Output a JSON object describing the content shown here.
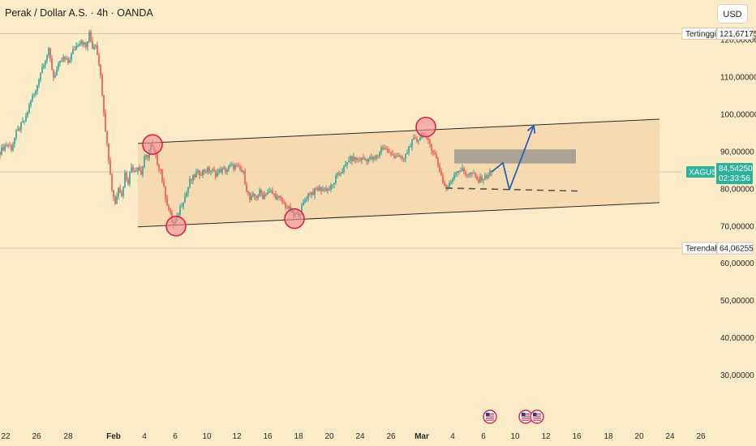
{
  "header": {
    "title": "Perak / Dollar A.S. · 4h · OANDA",
    "currency_button": "USD"
  },
  "price_labels": {
    "high_label": "Tertinggi",
    "high_value": "121,67175",
    "low_label": "Terendah",
    "low_value": "64,06255",
    "symbol": "XAGUSD",
    "last_price": "84,54250",
    "countdown": "02:33:56"
  },
  "colors": {
    "background": "#fbebc6",
    "up_candle": "#26a69a",
    "down_candle": "#ef5350",
    "channel_fill": "#f5d6a8",
    "circle_fill": "#f48a93",
    "circle_stroke": "#e0204c",
    "projection": "#2962b8",
    "resistance_zone": "#9e9a92",
    "price_tag": "#2bb39a"
  },
  "chart_data": {
    "type": "candlestick",
    "title": "Perak / Dollar A.S. · 4h · OANDA",
    "xlabel": "",
    "ylabel": "",
    "ylim": [
      22.5,
      130.7
    ],
    "y_ticks": [
      "120,00000",
      "110,00000",
      "100,00000",
      "90,00000",
      "80,00000",
      "70,00000",
      "60,00000",
      "50,00000",
      "40,00000",
      "30,00000"
    ],
    "x_ticks": [
      "22",
      "26",
      "28",
      "Feb",
      "4",
      "6",
      "10",
      "12",
      "16",
      "18",
      "20",
      "24",
      "26",
      "Mar",
      "4",
      "6",
      "10",
      "12",
      "16",
      "18",
      "20",
      "24",
      "26"
    ],
    "grid": false,
    "series": [
      {
        "type": "close-path",
        "points": [
          [
            0,
            90
          ],
          [
            8,
            92
          ],
          [
            14,
            91
          ],
          [
            20,
            95
          ],
          [
            26,
            97
          ],
          [
            32,
            99
          ],
          [
            38,
            104
          ],
          [
            44,
            106
          ],
          [
            48,
            110
          ],
          [
            54,
            114
          ],
          [
            60,
            117
          ],
          [
            66,
            110
          ],
          [
            72,
            113
          ],
          [
            78,
            115
          ],
          [
            84,
            114
          ],
          [
            90,
            117
          ],
          [
            96,
            119
          ],
          [
            100,
            120
          ],
          [
            106,
            118
          ],
          [
            110,
            121.5
          ],
          [
            114,
            118
          ],
          [
            118,
            119
          ],
          [
            122,
            114
          ],
          [
            126,
            106
          ],
          [
            130,
            96
          ],
          [
            134,
            88
          ],
          [
            138,
            80
          ],
          [
            142,
            76
          ],
          [
            146,
            81
          ],
          [
            150,
            78
          ],
          [
            154,
            84
          ],
          [
            158,
            82
          ],
          [
            162,
            86
          ],
          [
            166,
            85
          ],
          [
            170,
            86
          ],
          [
            174,
            84
          ],
          [
            178,
            88
          ],
          [
            182,
            89
          ],
          [
            186,
            92
          ],
          [
            190,
            90
          ],
          [
            194,
            87
          ],
          [
            198,
            85
          ],
          [
            202,
            80
          ],
          [
            206,
            76
          ],
          [
            210,
            73
          ],
          [
            214,
            70
          ],
          [
            218,
            72
          ],
          [
            222,
            75
          ],
          [
            226,
            77
          ],
          [
            230,
            79
          ],
          [
            234,
            82
          ],
          [
            238,
            83
          ],
          [
            242,
            84
          ],
          [
            248,
            84.5
          ],
          [
            254,
            85
          ],
          [
            260,
            85
          ],
          [
            266,
            84
          ],
          [
            272,
            85
          ],
          [
            278,
            85
          ],
          [
            284,
            86
          ],
          [
            290,
            86
          ],
          [
            296,
            85
          ],
          [
            300,
            84
          ],
          [
            304,
            80
          ],
          [
            308,
            77
          ],
          [
            312,
            78
          ],
          [
            316,
            78
          ],
          [
            320,
            79
          ],
          [
            324,
            78
          ],
          [
            328,
            79
          ],
          [
            334,
            79
          ],
          [
            340,
            78
          ],
          [
            346,
            77
          ],
          [
            350,
            76
          ],
          [
            354,
            75
          ],
          [
            358,
            74
          ],
          [
            362,
            73
          ],
          [
            366,
            73
          ],
          [
            370,
            74
          ],
          [
            374,
            76
          ],
          [
            378,
            78
          ],
          [
            382,
            79
          ],
          [
            386,
            79
          ],
          [
            390,
            80
          ],
          [
            394,
            80
          ],
          [
            398,
            80
          ],
          [
            402,
            80
          ],
          [
            406,
            80
          ],
          [
            410,
            81
          ],
          [
            414,
            83
          ],
          [
            418,
            84
          ],
          [
            422,
            85
          ],
          [
            426,
            86
          ],
          [
            430,
            88
          ],
          [
            434,
            88
          ],
          [
            438,
            88
          ],
          [
            442,
            88
          ],
          [
            446,
            88
          ],
          [
            450,
            88
          ],
          [
            454,
            88
          ],
          [
            458,
            88
          ],
          [
            462,
            88
          ],
          [
            466,
            89
          ],
          [
            470,
            91
          ],
          [
            474,
            91
          ],
          [
            478,
            90
          ],
          [
            482,
            89
          ],
          [
            486,
            89
          ],
          [
            490,
            89
          ],
          [
            494,
            88
          ],
          [
            498,
            88
          ],
          [
            502,
            90
          ],
          [
            506,
            92
          ],
          [
            510,
            93
          ],
          [
            514,
            93
          ],
          [
            518,
            94
          ],
          [
            522,
            95
          ],
          [
            526,
            93
          ],
          [
            530,
            92
          ],
          [
            534,
            90
          ],
          [
            538,
            88
          ],
          [
            542,
            85
          ],
          [
            546,
            82
          ],
          [
            550,
            80
          ],
          [
            554,
            81
          ],
          [
            558,
            83
          ],
          [
            562,
            85
          ],
          [
            566,
            85
          ],
          [
            570,
            85
          ],
          [
            574,
            84
          ],
          [
            578,
            84
          ],
          [
            582,
            84
          ],
          [
            586,
            83
          ],
          [
            590,
            82
          ],
          [
            594,
            83
          ],
          [
            598,
            83
          ],
          [
            602,
            84
          ],
          [
            606,
            84.5
          ]
        ]
      },
      {
        "type": "channel",
        "upper": [
          [
            170,
            92.2
          ],
          [
            813,
            98.7
          ]
        ],
        "lower": [
          [
            170,
            69.8
          ],
          [
            813,
            76.3
          ]
        ]
      },
      {
        "type": "highlighted-pivots",
        "points": [
          [
            188,
            91.9
          ],
          [
            217,
            70.0
          ],
          [
            363,
            72.0
          ],
          [
            525,
            96.6
          ]
        ]
      },
      {
        "type": "resistance-zone",
        "x_range": [
          560,
          710
        ],
        "y_range": [
          86.8,
          90.6
        ]
      },
      {
        "type": "support-line-dashed",
        "from": [
          550,
          80.2
        ],
        "to": [
          716,
          79.4
        ]
      },
      {
        "type": "projection",
        "points": [
          [
            606,
            84.5
          ],
          [
            620,
            87.0
          ],
          [
            628,
            79.8
          ],
          [
            658,
            97.0
          ]
        ]
      },
      {
        "type": "horizontal-lines",
        "high": 121.67175,
        "low": 64.06255,
        "last": 84.5425
      }
    ]
  }
}
